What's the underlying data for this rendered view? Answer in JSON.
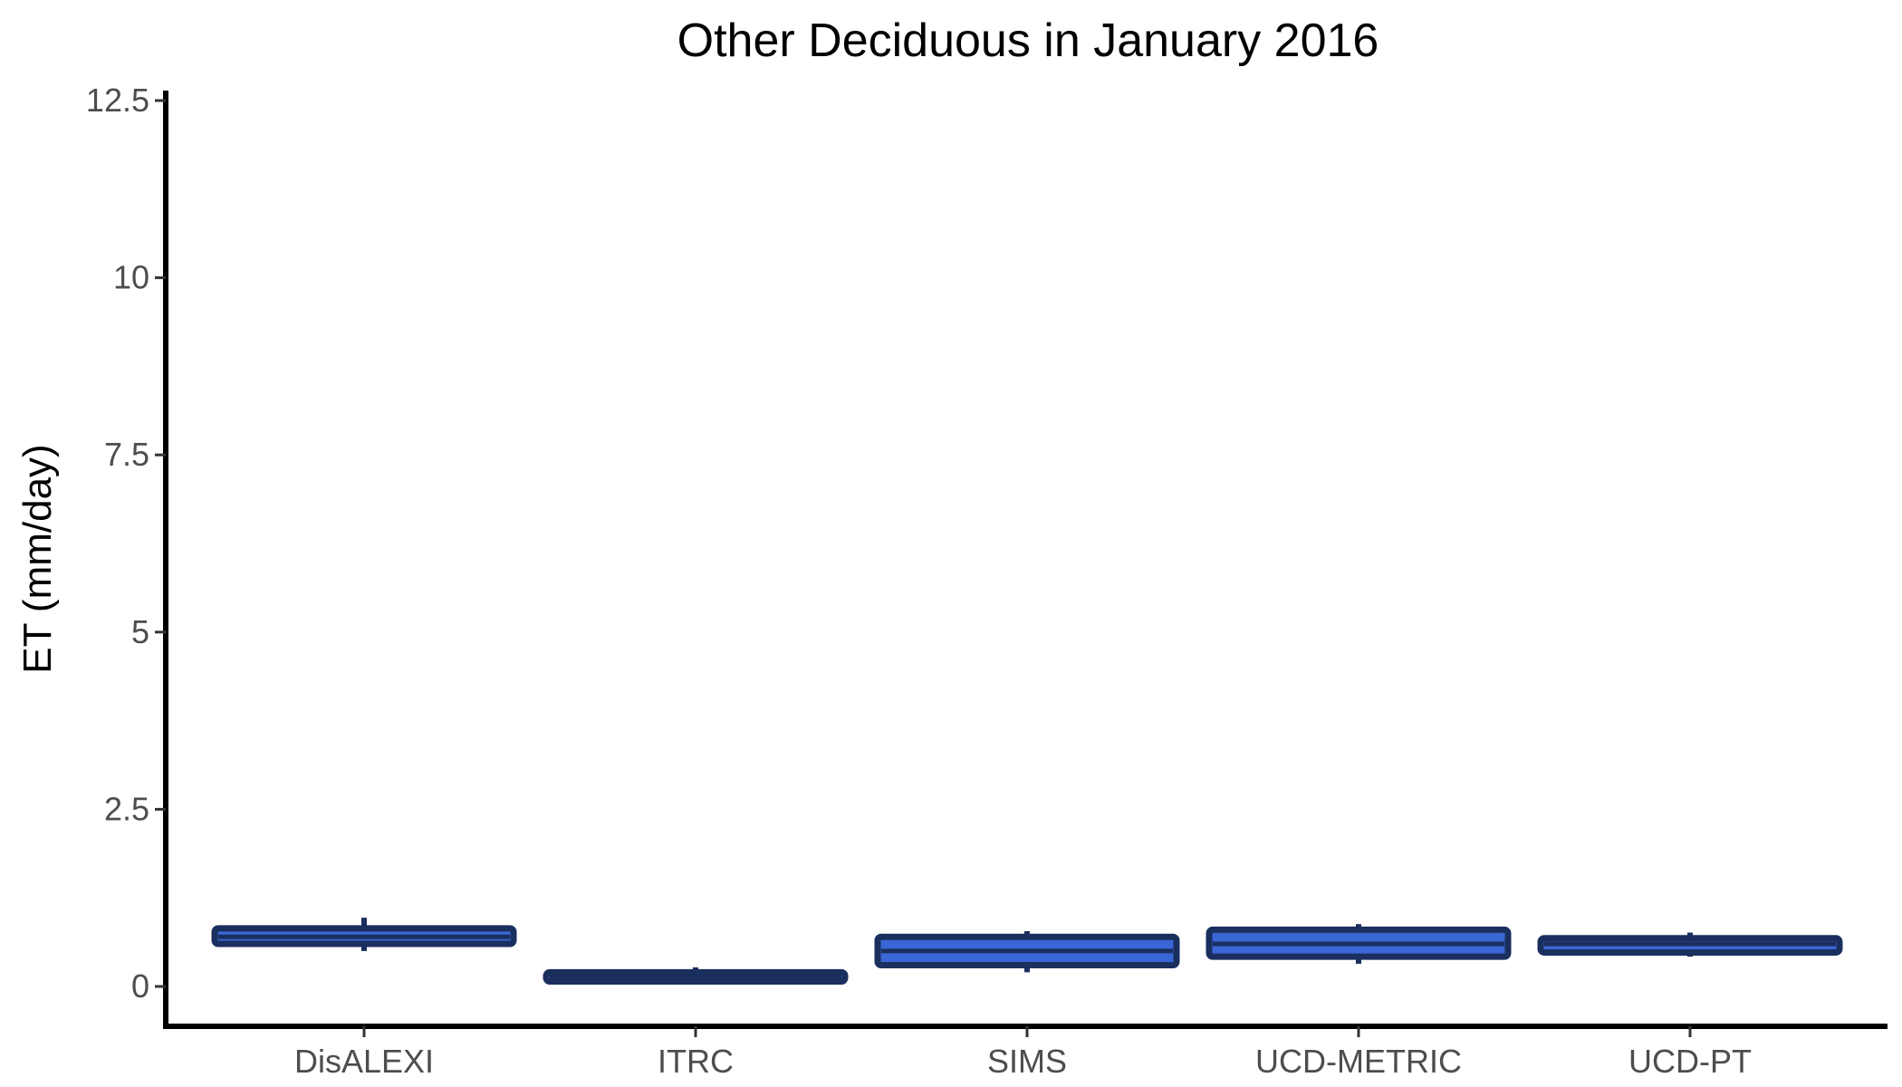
{
  "chart_data": {
    "type": "box",
    "title": "Other Deciduous in January 2016",
    "xlabel": "",
    "ylabel": "ET (mm/day)",
    "ylim": [
      -0.58,
      12.6
    ],
    "yticks": [
      0,
      2.5,
      5,
      7.5,
      10,
      12.5
    ],
    "ytick_labels": [
      "0",
      "2.5",
      "5",
      "7.5",
      "10",
      "12.5"
    ],
    "grid": false,
    "legend": "none",
    "categories": [
      "DisALEXI",
      "ITRC",
      "SIMS",
      "UCD-METRIC",
      "UCD-PT"
    ],
    "boxes": [
      {
        "min": 0.5,
        "q1": 0.6,
        "median": 0.7,
        "q3": 0.82,
        "max": 0.97
      },
      {
        "min": 0.03,
        "q1": 0.07,
        "median": 0.13,
        "q3": 0.2,
        "max": 0.27
      },
      {
        "min": 0.2,
        "q1": 0.3,
        "median": 0.5,
        "q3": 0.7,
        "max": 0.78
      },
      {
        "min": 0.32,
        "q1": 0.42,
        "median": 0.6,
        "q3": 0.8,
        "max": 0.88
      },
      {
        "min": 0.42,
        "q1": 0.48,
        "median": 0.6,
        "q3": 0.68,
        "max": 0.76
      }
    ],
    "colors": {
      "fill": "#3a66d6",
      "outline": "#1a2f5e",
      "axis": "#000000",
      "tick_label": "#4d4d4d"
    }
  }
}
